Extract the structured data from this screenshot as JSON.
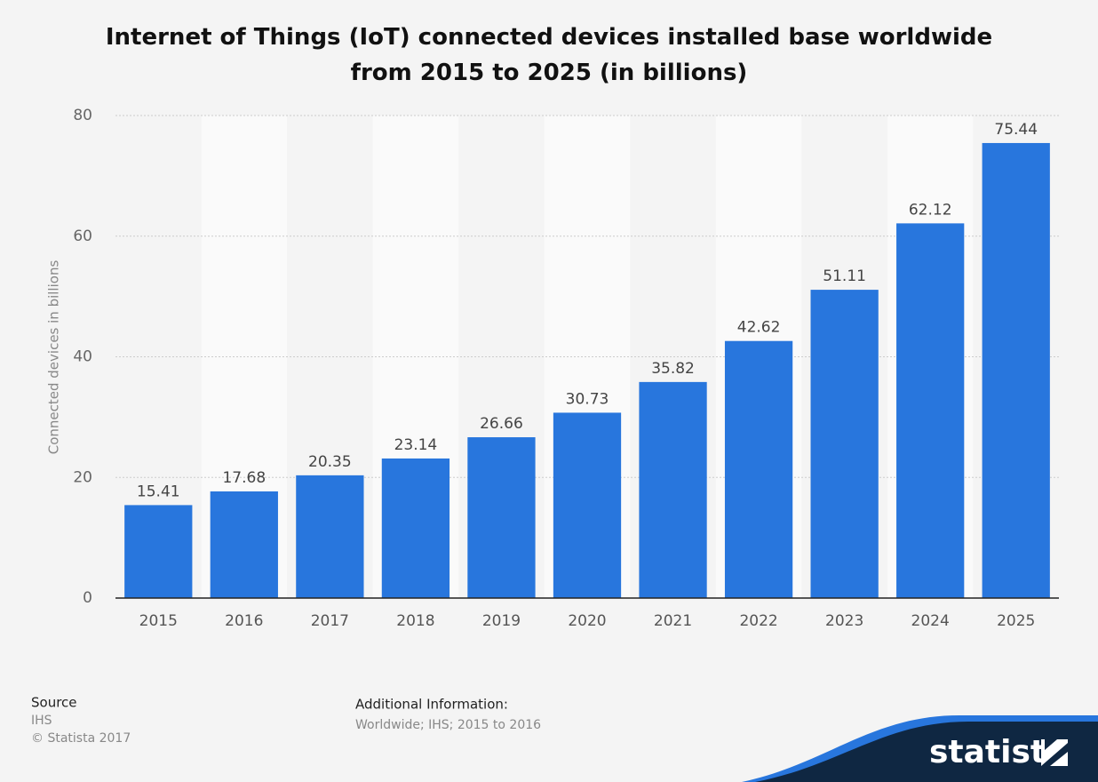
{
  "chart_data": {
    "type": "bar",
    "title": "Internet of Things (IoT) connected devices installed base worldwide from 2015 to 2025 (in billions)",
    "y_label": "Connected devices in billions",
    "categories": [
      "2015",
      "2016",
      "2017",
      "2018",
      "2019",
      "2020",
      "2021",
      "2022",
      "2023",
      "2024",
      "2025"
    ],
    "values": [
      15.41,
      17.68,
      20.35,
      23.14,
      26.66,
      30.73,
      35.82,
      42.62,
      51.11,
      62.12,
      75.44
    ],
    "color": "#2876dd",
    "ylim": [
      0,
      80
    ],
    "yticks": [
      0,
      20,
      40,
      60,
      80
    ],
    "grid": true
  },
  "footer": {
    "source_label": "Source",
    "source": "IHS",
    "copyright": "© Statista 2017",
    "additional_info_label": "Additional Information:",
    "additional_info": "Worldwide; IHS; 2015 to 2016",
    "logo": "statista"
  }
}
